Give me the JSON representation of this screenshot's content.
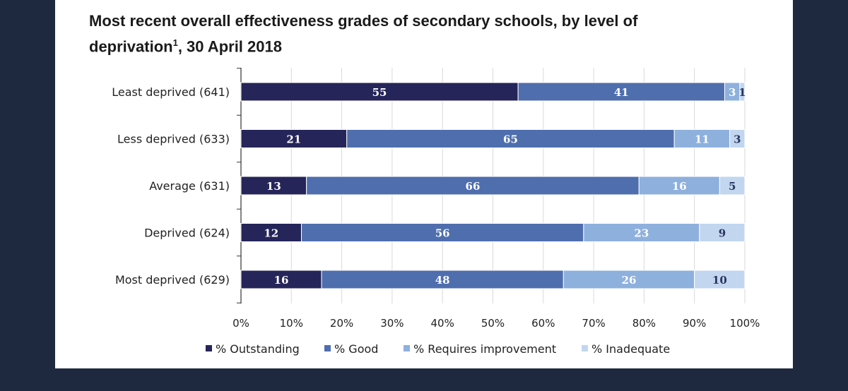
{
  "chart_data": {
    "type": "bar",
    "orientation": "horizontal",
    "stacked": true,
    "title_main": "Most recent overall effectiveness grades of secondary schools, by level of deprivation",
    "title_footnote": "1",
    "title_date": ", 30 April 2018",
    "categories": [
      "Least deprived (641)",
      "Less deprived (633)",
      "Average (631)",
      "Deprived (624)",
      "Most deprived (629)"
    ],
    "series": [
      {
        "name": "% Outstanding",
        "color": "#25255a",
        "text_color": "#ffffff",
        "values": [
          55,
          21,
          13,
          12,
          16
        ]
      },
      {
        "name": "% Good",
        "color": "#4f6eae",
        "text_color": "#ffffff",
        "values": [
          41,
          65,
          66,
          56,
          48
        ]
      },
      {
        "name": "% Requires improvement",
        "color": "#8eb0dd",
        "text_color": "#ffffff",
        "values": [
          3,
          11,
          16,
          23,
          26
        ]
      },
      {
        "name": "% Inadequate",
        "color": "#c2d6ef",
        "text_color": "#2a3560",
        "values": [
          1,
          3,
          5,
          9,
          10
        ]
      }
    ],
    "x_ticks": [
      "0%",
      "10%",
      "20%",
      "30%",
      "40%",
      "50%",
      "60%",
      "70%",
      "80%",
      "90%",
      "100%"
    ],
    "xlim": [
      0,
      100
    ],
    "grid": true,
    "legend_position": "bottom"
  }
}
